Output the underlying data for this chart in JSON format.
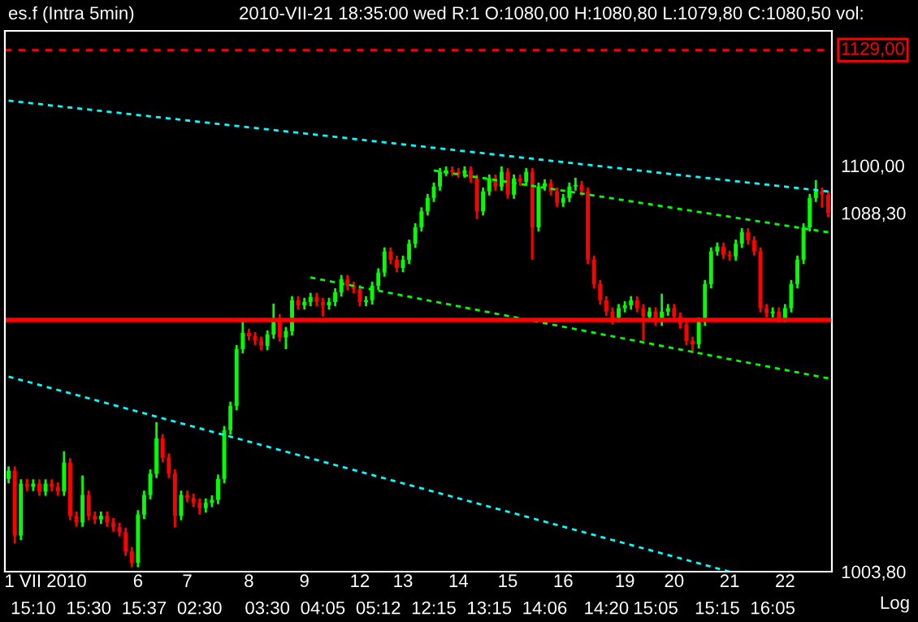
{
  "chart_data": {
    "type": "candlestick",
    "title": "es.f (Intra 5min)",
    "subtitle": "2010-VII-21 18:35:00 wed R:1 O:1080,00 H:1080,80 L:1079,80 C:1080,50 vol:",
    "annotations": [
      "Log"
    ],
    "categories": [
      null,
      null,
      null,
      null,
      "15:10",
      null,
      "1 VII 2010",
      null,
      null,
      null,
      null,
      null,
      null,
      "15:30",
      null,
      null,
      null,
      null,
      null,
      null,
      null,
      "6",
      "15:37",
      null,
      null,
      null,
      null,
      null,
      null,
      "7",
      null,
      "02:30",
      null,
      null,
      null,
      null,
      null,
      null,
      null,
      "8",
      null,
      null,
      "03:30",
      null,
      null,
      null,
      null,
      null,
      "9",
      null,
      null,
      "04:05",
      null,
      null,
      null,
      null,
      null,
      "12",
      null,
      null,
      "05:12",
      null,
      null,
      null,
      "13",
      null,
      null,
      null,
      null,
      "12:15",
      null,
      null,
      null,
      "14",
      null,
      null,
      null,
      null,
      "13:15",
      null,
      null,
      "15",
      null,
      null,
      null,
      null,
      null,
      "14:06",
      null,
      null,
      "16",
      null,
      null,
      null,
      null,
      null,
      null,
      "14:20",
      null,
      null,
      "19",
      null,
      null,
      null,
      null,
      "15:05",
      null,
      null,
      "20",
      null,
      null,
      null,
      null,
      null,
      null,
      "15:15",
      null,
      "21",
      null,
      null,
      null,
      null,
      null,
      null,
      "16:05",
      null,
      "22",
      null,
      null,
      null,
      null,
      null,
      null,
      null
    ],
    "ohlc": [
      [
        1025.0,
        1027.9,
        1024.0,
        1026.9
      ],
      [
        1026.9,
        1027.9,
        1010.2,
        1012.0
      ],
      [
        1012.0,
        1024.9,
        1011.0,
        1023.9
      ],
      [
        1023.9,
        1025.0,
        1022.2,
        1023.2
      ],
      [
        1023.2,
        1024.9,
        1022.2,
        1023.9
      ],
      [
        1023.9,
        1024.9,
        1021.1,
        1022.1
      ],
      [
        1022.1,
        1024.9,
        1021.1,
        1023.9
      ],
      [
        1023.9,
        1024.9,
        1022.2,
        1023.2
      ],
      [
        1023.2,
        1024.2,
        1021.1,
        1022.1
      ],
      [
        1022.1,
        1031.4,
        1021.1,
        1028.8
      ],
      [
        1028.8,
        1029.8,
        1015.5,
        1016.5
      ],
      [
        1016.5,
        1017.5,
        1014.0,
        1015.0
      ],
      [
        1015.0,
        1025.8,
        1014.0,
        1021.3
      ],
      [
        1021.3,
        1022.3,
        1015.5,
        1016.5
      ],
      [
        1016.5,
        1017.5,
        1014.7,
        1015.7
      ],
      [
        1015.7,
        1017.5,
        1014.7,
        1016.5
      ],
      [
        1016.5,
        1017.5,
        1014.0,
        1015.0
      ],
      [
        1015.0,
        1016.0,
        1012.9,
        1013.9
      ],
      [
        1013.9,
        1014.9,
        1011.8,
        1012.8
      ],
      [
        1012.8,
        1013.8,
        1007.4,
        1008.4
      ],
      [
        1008.4,
        1009.4,
        1004.8,
        1005.8
      ],
      [
        1005.8,
        1017.8,
        1004.8,
        1016.8
      ],
      [
        1016.8,
        1022.3,
        1015.8,
        1021.3
      ],
      [
        1021.3,
        1027.2,
        1020.3,
        1026.2
      ],
      [
        1026.2,
        1038.2,
        1025.2,
        1034.4
      ],
      [
        1034.4,
        1035.4,
        1028.9,
        1029.9
      ],
      [
        1029.9,
        1030.9,
        1025.2,
        1026.2
      ],
      [
        1026.2,
        1027.2,
        1013.9,
        1016.5
      ],
      [
        1016.5,
        1022.3,
        1015.5,
        1021.3
      ],
      [
        1021.3,
        1022.3,
        1019.6,
        1020.6
      ],
      [
        1020.6,
        1021.6,
        1018.5,
        1019.5
      ],
      [
        1019.5,
        1020.5,
        1016.8,
        1018.3
      ],
      [
        1018.3,
        1020.5,
        1017.3,
        1019.5
      ],
      [
        1019.5,
        1021.2,
        1018.5,
        1020.2
      ],
      [
        1020.2,
        1026.0,
        1019.2,
        1025.0
      ],
      [
        1025.0,
        1037.3,
        1024.0,
        1036.3
      ],
      [
        1036.3,
        1043.0,
        1035.3,
        1042.0
      ],
      [
        1042.0,
        1056.4,
        1041.0,
        1055.4
      ],
      [
        1055.4,
        1062.4,
        1054.4,
        1059.3
      ],
      [
        1059.3,
        1060.3,
        1057.5,
        1058.5
      ],
      [
        1058.5,
        1059.5,
        1056.4,
        1057.4
      ],
      [
        1057.4,
        1058.4,
        1055.2,
        1056.2
      ],
      [
        1056.2,
        1059.9,
        1055.2,
        1058.9
      ],
      [
        1058.9,
        1066.3,
        1057.9,
        1062.8
      ],
      [
        1062.8,
        1063.8,
        1057.2,
        1058.2
      ],
      [
        1058.2,
        1060.7,
        1055.4,
        1059.7
      ],
      [
        1059.7,
        1068.1,
        1058.7,
        1067.1
      ],
      [
        1067.1,
        1068.1,
        1064.9,
        1065.9
      ],
      [
        1065.9,
        1067.7,
        1064.9,
        1066.7
      ],
      [
        1066.7,
        1068.9,
        1065.7,
        1067.9
      ],
      [
        1067.9,
        1068.9,
        1065.7,
        1066.7
      ],
      [
        1066.7,
        1067.7,
        1063.2,
        1065.9
      ],
      [
        1065.9,
        1067.7,
        1064.9,
        1066.7
      ],
      [
        1066.7,
        1070.0,
        1065.7,
        1069.0
      ],
      [
        1069.0,
        1073.2,
        1068.0,
        1072.2
      ],
      [
        1072.2,
        1073.2,
        1069.6,
        1070.6
      ],
      [
        1070.6,
        1071.6,
        1068.8,
        1069.8
      ],
      [
        1069.8,
        1070.8,
        1065.7,
        1066.7
      ],
      [
        1066.7,
        1068.1,
        1065.7,
        1067.1
      ],
      [
        1067.1,
        1071.6,
        1066.1,
        1070.6
      ],
      [
        1070.6,
        1074.8,
        1069.6,
        1073.8
      ],
      [
        1073.8,
        1079.9,
        1072.8,
        1078.9
      ],
      [
        1078.9,
        1079.9,
        1075.9,
        1076.9
      ],
      [
        1076.9,
        1077.9,
        1073.9,
        1074.9
      ],
      [
        1074.9,
        1077.9,
        1073.9,
        1076.9
      ],
      [
        1076.9,
        1081.8,
        1075.9,
        1080.8
      ],
      [
        1080.8,
        1085.8,
        1079.8,
        1084.8
      ],
      [
        1084.8,
        1089.7,
        1083.8,
        1088.7
      ],
      [
        1088.7,
        1093.0,
        1087.7,
        1092.0
      ],
      [
        1092.0,
        1095.8,
        1091.0,
        1094.8
      ],
      [
        1094.8,
        1099.4,
        1093.8,
        1098.4
      ],
      [
        1098.4,
        1099.8,
        1097.4,
        1098.8
      ],
      [
        1098.8,
        1099.8,
        1097.4,
        1098.4
      ],
      [
        1098.4,
        1099.4,
        1097.0,
        1098.0
      ],
      [
        1098.0,
        1099.8,
        1097.0,
        1098.8
      ],
      [
        1098.8,
        1099.8,
        1095.8,
        1096.8
      ],
      [
        1096.8,
        1097.8,
        1086.8,
        1088.7
      ],
      [
        1088.7,
        1094.6,
        1087.7,
        1093.6
      ],
      [
        1093.6,
        1097.8,
        1092.6,
        1096.8
      ],
      [
        1096.8,
        1097.8,
        1093.8,
        1094.8
      ],
      [
        1094.8,
        1099.8,
        1093.8,
        1098.4
      ],
      [
        1098.4,
        1099.4,
        1091.8,
        1092.8
      ],
      [
        1092.8,
        1097.8,
        1091.8,
        1096.8
      ],
      [
        1096.8,
        1097.8,
        1095.0,
        1096.0
      ],
      [
        1096.0,
        1099.4,
        1095.0,
        1098.4
      ],
      [
        1098.4,
        1099.4,
        1076.9,
        1084.8
      ],
      [
        1084.8,
        1095.8,
        1083.8,
        1094.8
      ],
      [
        1094.8,
        1096.6,
        1093.8,
        1095.6
      ],
      [
        1095.6,
        1096.6,
        1092.6,
        1093.6
      ],
      [
        1093.6,
        1094.6,
        1089.8,
        1090.8
      ],
      [
        1090.8,
        1093.0,
        1089.8,
        1092.0
      ],
      [
        1092.0,
        1095.8,
        1091.0,
        1094.8
      ],
      [
        1094.8,
        1097.0,
        1093.8,
        1095.2
      ],
      [
        1095.2,
        1096.2,
        1092.6,
        1093.6
      ],
      [
        1093.6,
        1094.6,
        1075.9,
        1076.9
      ],
      [
        1076.9,
        1077.9,
        1070.0,
        1071.0
      ],
      [
        1071.0,
        1072.0,
        1066.1,
        1067.1
      ],
      [
        1067.1,
        1068.1,
        1063.4,
        1064.4
      ],
      [
        1064.4,
        1065.4,
        1061.3,
        1062.8
      ],
      [
        1062.8,
        1066.2,
        1061.8,
        1065.2
      ],
      [
        1065.2,
        1066.9,
        1064.2,
        1065.9
      ],
      [
        1065.9,
        1068.1,
        1064.9,
        1067.1
      ],
      [
        1067.1,
        1068.1,
        1064.2,
        1065.2
      ],
      [
        1065.2,
        1066.2,
        1057.4,
        1063.2
      ],
      [
        1063.2,
        1065.4,
        1062.2,
        1064.4
      ],
      [
        1064.4,
        1065.4,
        1061.0,
        1062.0
      ],
      [
        1062.0,
        1068.7,
        1061.0,
        1064.4
      ],
      [
        1064.4,
        1066.2,
        1063.4,
        1065.2
      ],
      [
        1065.2,
        1066.2,
        1062.2,
        1063.2
      ],
      [
        1063.2,
        1064.2,
        1060.3,
        1061.3
      ],
      [
        1061.3,
        1062.3,
        1056.4,
        1057.4
      ],
      [
        1057.4,
        1058.4,
        1054.4,
        1056.6
      ],
      [
        1056.6,
        1063.0,
        1055.6,
        1062.0
      ],
      [
        1062.0,
        1072.0,
        1061.0,
        1071.0
      ],
      [
        1071.0,
        1079.9,
        1070.0,
        1078.9
      ],
      [
        1078.9,
        1081.1,
        1077.9,
        1080.1
      ],
      [
        1080.1,
        1081.1,
        1077.1,
        1078.1
      ],
      [
        1078.1,
        1079.1,
        1076.7,
        1077.7
      ],
      [
        1077.7,
        1081.8,
        1076.7,
        1080.8
      ],
      [
        1080.8,
        1084.6,
        1079.8,
        1083.6
      ],
      [
        1083.6,
        1084.6,
        1080.6,
        1081.6
      ],
      [
        1081.6,
        1082.6,
        1077.9,
        1078.9
      ],
      [
        1078.9,
        1079.9,
        1064.2,
        1065.2
      ],
      [
        1065.2,
        1066.2,
        1063.0,
        1064.0
      ],
      [
        1064.0,
        1065.4,
        1063.0,
        1064.4
      ],
      [
        1064.4,
        1065.4,
        1061.8,
        1062.8
      ],
      [
        1062.8,
        1066.2,
        1061.8,
        1065.2
      ],
      [
        1065.2,
        1072.0,
        1064.2,
        1071.0
      ],
      [
        1071.0,
        1077.9,
        1070.0,
        1076.9
      ],
      [
        1076.9,
        1085.8,
        1075.9,
        1084.8
      ],
      [
        1084.8,
        1093.0,
        1083.8,
        1092.0
      ],
      [
        1092.0,
        1096.4,
        1091.0,
        1093.6
      ],
      [
        1093.6,
        1094.6,
        1089.6,
        1092.8
      ],
      [
        1092.8,
        1093.8,
        1087.3,
        1088.3
      ]
    ],
    "series": [
      {
        "type": "line",
        "color": "#00ffff",
        "line_style": "dashed",
        "values": [
          1116.2,
          null,
          null,
          null,
          null,
          null,
          null,
          null,
          null,
          null,
          null,
          null,
          null,
          null,
          null,
          null,
          null,
          null,
          null,
          null,
          null,
          null,
          null,
          null,
          null,
          null,
          null,
          null,
          null,
          null,
          null,
          null,
          null,
          null,
          null,
          null,
          null,
          null,
          null,
          null,
          null,
          null,
          null,
          null,
          null,
          null,
          null,
          null,
          null,
          null,
          null,
          null,
          null,
          null,
          null,
          null,
          null,
          null,
          null,
          null,
          null,
          null,
          null,
          null,
          null,
          null,
          null,
          null,
          null,
          null,
          null,
          null,
          null,
          null,
          null,
          null,
          null,
          null,
          null,
          null,
          null,
          null,
          null,
          null,
          null,
          null,
          null,
          null,
          null,
          null,
          null,
          null,
          null,
          null,
          null,
          null,
          null,
          null,
          null,
          null,
          null,
          null,
          null,
          null,
          null,
          null,
          null,
          null,
          null,
          null,
          null,
          null,
          null,
          null,
          null,
          null,
          null,
          null,
          null,
          null,
          null,
          null,
          null,
          null,
          null,
          null,
          null,
          null,
          null,
          null,
          null,
          null,
          null,
          1093.6
        ]
      },
      {
        "type": "line",
        "color": "#00ffff",
        "line_style": "dashed",
        "values": [
          1048.9,
          null,
          null,
          null,
          null,
          null,
          null,
          null,
          null,
          null,
          null,
          null,
          null,
          null,
          null,
          null,
          null,
          null,
          null,
          null,
          null,
          null,
          null,
          null,
          null,
          null,
          null,
          null,
          null,
          null,
          null,
          null,
          null,
          null,
          null,
          null,
          null,
          null,
          null,
          null,
          null,
          null,
          null,
          null,
          null,
          null,
          null,
          null,
          null,
          null,
          null,
          null,
          null,
          null,
          null,
          null,
          null,
          null,
          null,
          null,
          null,
          null,
          null,
          null,
          null,
          null,
          null,
          null,
          null,
          null,
          null,
          null,
          null,
          null,
          null,
          null,
          null,
          null,
          null,
          null,
          null,
          null,
          null,
          null,
          null,
          null,
          null,
          null,
          null,
          null,
          null,
          null,
          null,
          null,
          null,
          null,
          null,
          null,
          null,
          null,
          null,
          null,
          null,
          null,
          null,
          null,
          null,
          null,
          null,
          null,
          null,
          null,
          null,
          null,
          null,
          null,
          null,
          1003.8,
          null,
          null,
          null,
          null,
          null,
          null,
          null,
          null,
          null,
          null,
          null,
          null,
          null,
          null,
          null,
          null
        ]
      },
      {
        "type": "line",
        "color": "#00ff00",
        "line_style": "dashed",
        "values": [
          null,
          null,
          null,
          null,
          null,
          null,
          null,
          null,
          null,
          null,
          null,
          null,
          null,
          null,
          null,
          null,
          null,
          null,
          null,
          null,
          null,
          null,
          null,
          null,
          null,
          null,
          null,
          null,
          null,
          null,
          null,
          null,
          null,
          null,
          null,
          null,
          null,
          null,
          null,
          null,
          null,
          null,
          null,
          null,
          null,
          null,
          null,
          null,
          null,
          null,
          null,
          null,
          null,
          null,
          null,
          null,
          null,
          null,
          null,
          null,
          null,
          null,
          null,
          null,
          null,
          null,
          null,
          null,
          null,
          1098.8,
          null,
          null,
          null,
          null,
          null,
          null,
          null,
          null,
          null,
          null,
          null,
          null,
          null,
          null,
          null,
          null,
          null,
          null,
          null,
          null,
          null,
          null,
          null,
          null,
          null,
          null,
          null,
          null,
          null,
          null,
          null,
          null,
          null,
          null,
          null,
          null,
          null,
          null,
          null,
          null,
          null,
          null,
          null,
          null,
          null,
          null,
          null,
          null,
          null,
          null,
          null,
          null,
          null,
          null,
          null,
          null,
          null,
          null,
          null,
          null,
          null,
          null,
          null,
          1083.6
        ]
      },
      {
        "type": "line",
        "color": "#00ff00",
        "line_style": "dashed",
        "values": [
          null,
          null,
          null,
          null,
          null,
          null,
          null,
          null,
          null,
          null,
          null,
          null,
          null,
          null,
          null,
          null,
          null,
          null,
          null,
          null,
          null,
          null,
          null,
          null,
          null,
          null,
          null,
          null,
          null,
          null,
          null,
          null,
          null,
          null,
          null,
          null,
          null,
          null,
          null,
          null,
          null,
          null,
          null,
          null,
          null,
          null,
          null,
          null,
          null,
          1072.6,
          null,
          null,
          null,
          null,
          null,
          null,
          null,
          null,
          null,
          null,
          null,
          null,
          null,
          null,
          null,
          null,
          null,
          null,
          null,
          null,
          null,
          null,
          null,
          null,
          null,
          null,
          null,
          null,
          null,
          null,
          null,
          null,
          null,
          null,
          null,
          null,
          null,
          null,
          null,
          null,
          null,
          null,
          null,
          null,
          null,
          null,
          null,
          null,
          null,
          null,
          null,
          null,
          null,
          null,
          null,
          null,
          null,
          null,
          null,
          null,
          null,
          null,
          null,
          null,
          null,
          null,
          null,
          null,
          null,
          null,
          null,
          null,
          null,
          null,
          null,
          null,
          null,
          null,
          null,
          null,
          null,
          null,
          null,
          1048.5
        ]
      }
    ],
    "ref_lines": [
      {
        "axis": "y",
        "value": 1129,
        "label": "1129,00",
        "color": "#ff0000",
        "line_style": "dashed"
      },
      {
        "axis": "y",
        "value": 1062.4,
        "color": "#ff0000",
        "line_style": "solid"
      }
    ],
    "log": "y",
    "grid": false,
    "marker": "none",
    "ylim": [
      1003.8,
      1133.9
    ],
    "yticks": [
      {
        "value": 1003.8,
        "label": "1003,80"
      },
      {
        "value": 1088.3,
        "label": "1088,30"
      },
      {
        "value": 1100,
        "label": "1100,00"
      }
    ]
  }
}
